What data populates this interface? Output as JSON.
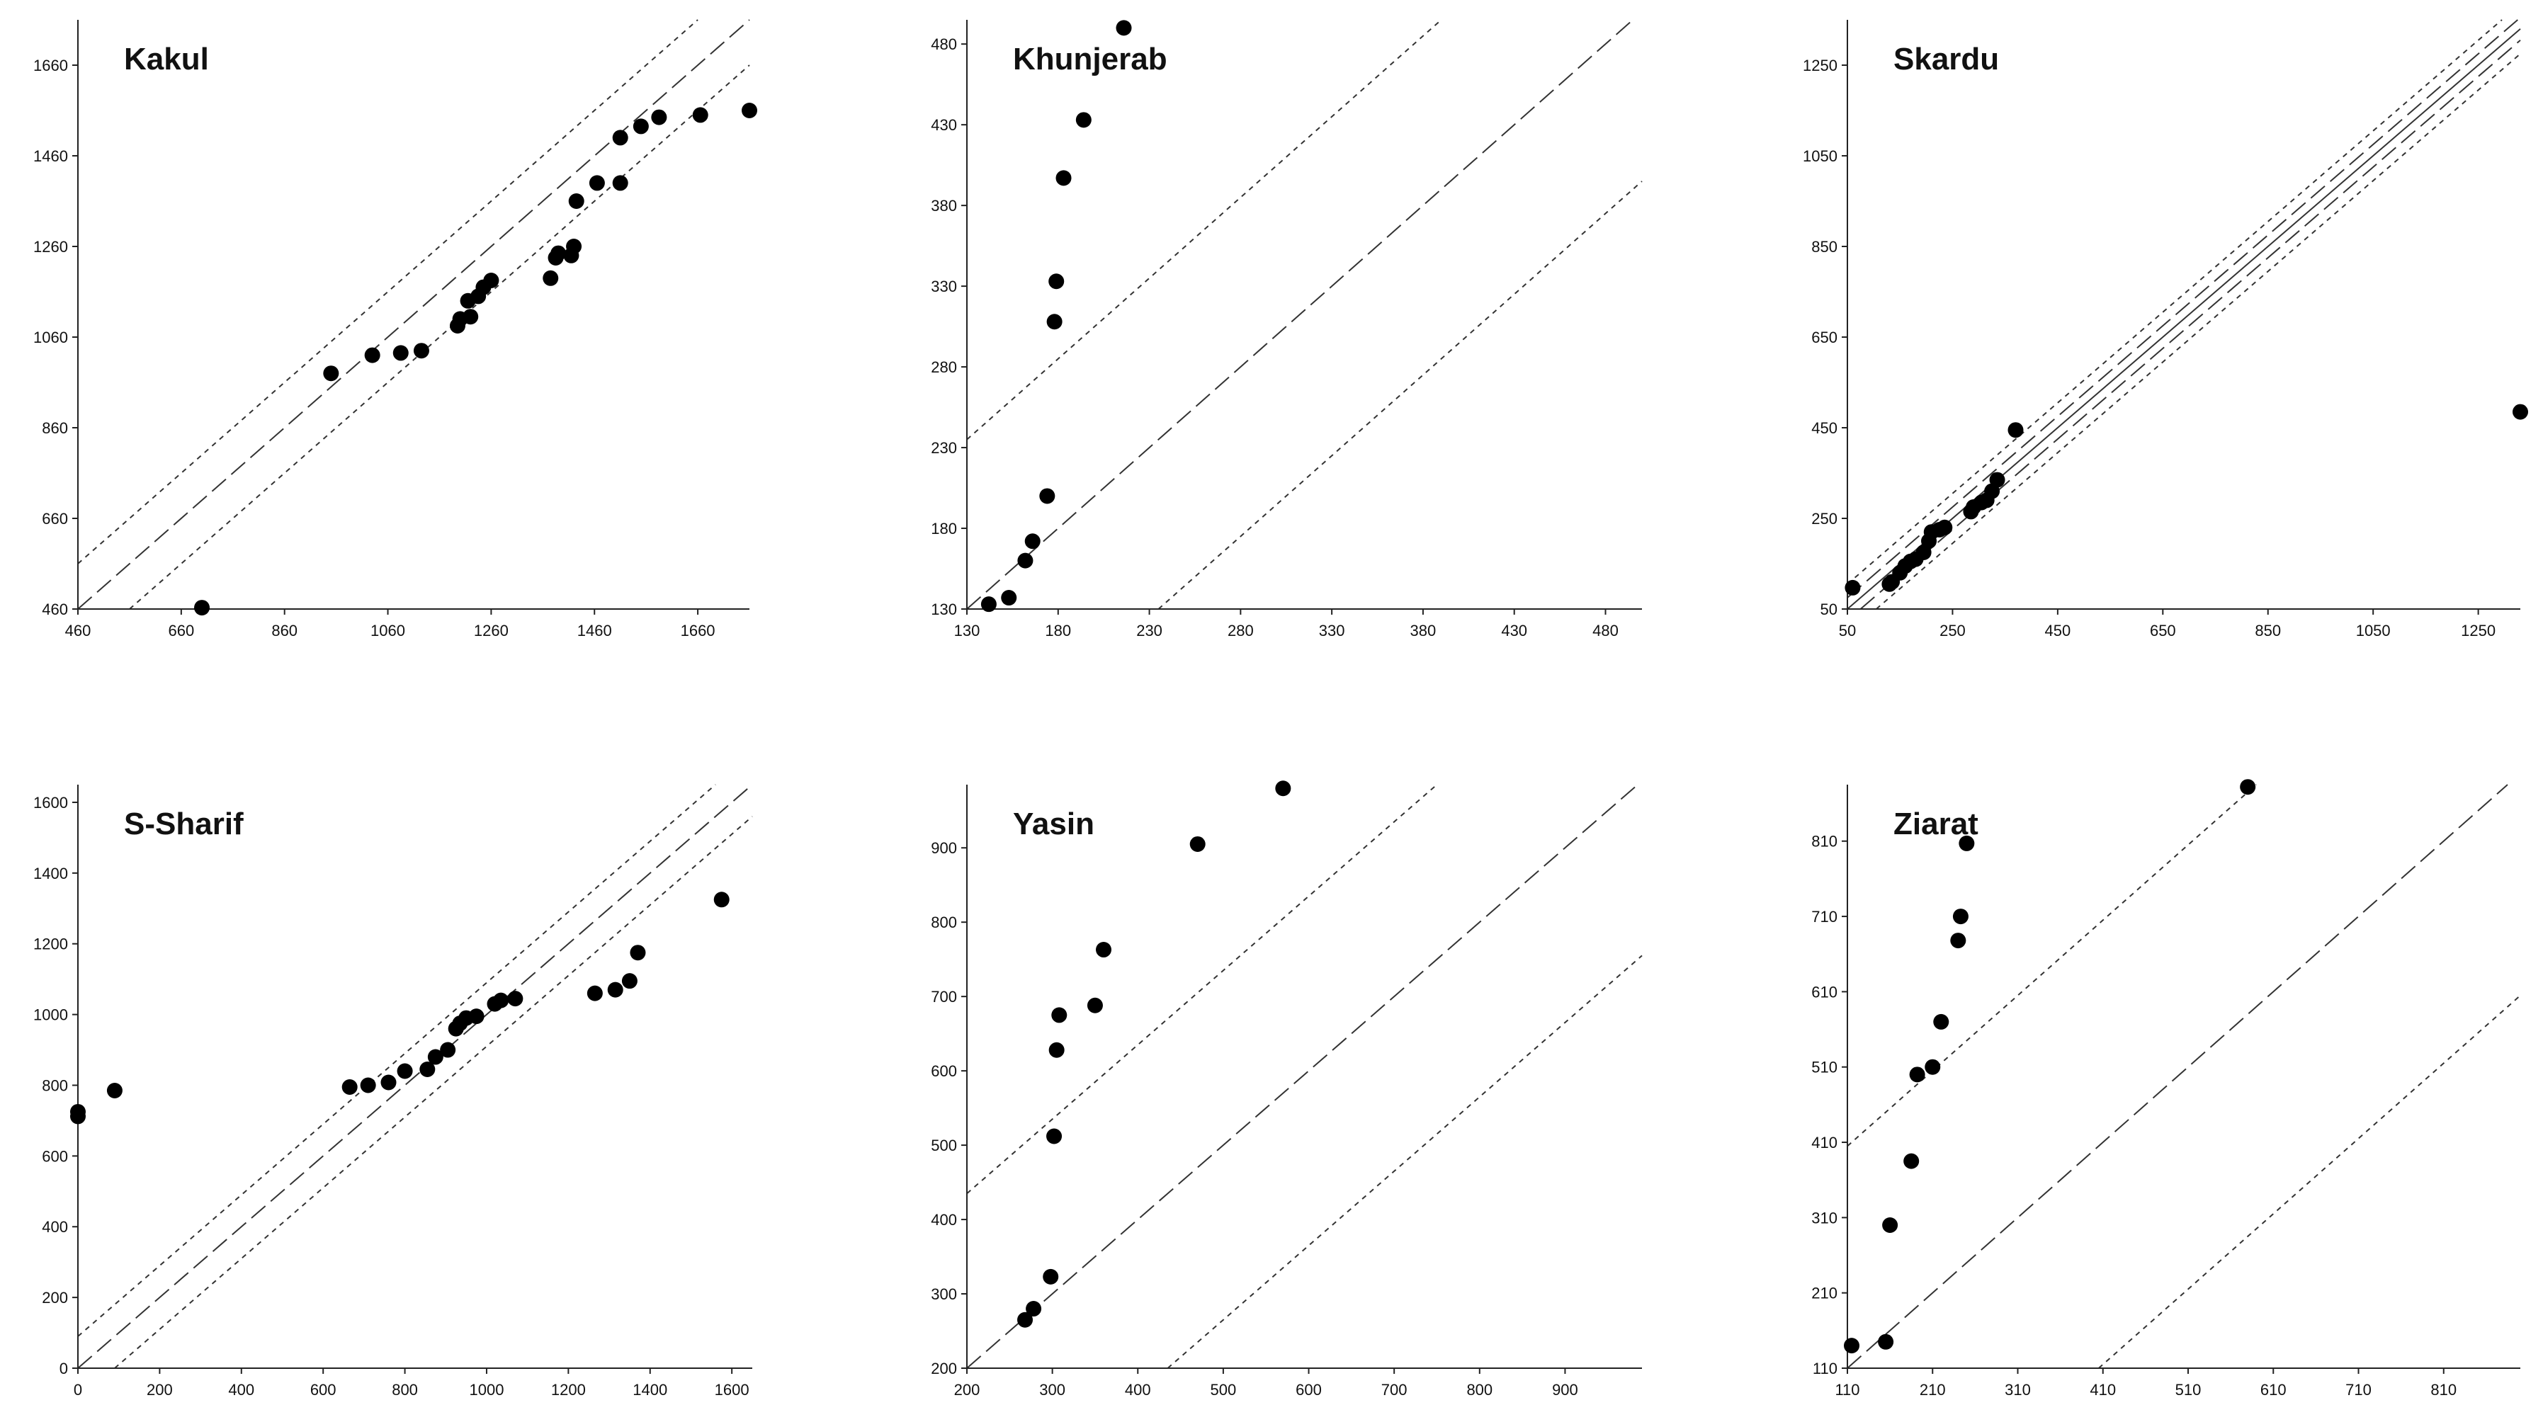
{
  "chart_data": [
    {
      "type": "scatter",
      "title": "Kakul",
      "xlabel": "",
      "ylabel": "",
      "xlim": [
        460,
        1760
      ],
      "ylim": [
        460,
        1760
      ],
      "xticks": [
        460,
        660,
        860,
        1060,
        1260,
        1460,
        1660
      ],
      "yticks": [
        460,
        660,
        860,
        1060,
        1260,
        1460,
        1660
      ],
      "reference_lines": [
        {
          "name": "1:1",
          "style": "long-dash",
          "offset": 0
        },
        {
          "name": "upper bound",
          "style": "dotted",
          "offset": 100
        },
        {
          "name": "lower bound",
          "style": "dotted",
          "offset": -100
        }
      ],
      "points": [
        [
          700,
          463
        ],
        [
          950,
          980
        ],
        [
          1030,
          1020
        ],
        [
          1085,
          1025
        ],
        [
          1125,
          1030
        ],
        [
          1195,
          1085
        ],
        [
          1200,
          1100
        ],
        [
          1220,
          1105
        ],
        [
          1215,
          1140
        ],
        [
          1235,
          1150
        ],
        [
          1245,
          1170
        ],
        [
          1260,
          1185
        ],
        [
          1375,
          1190
        ],
        [
          1385,
          1235
        ],
        [
          1390,
          1245
        ],
        [
          1415,
          1240
        ],
        [
          1420,
          1260
        ],
        [
          1425,
          1360
        ],
        [
          1465,
          1400
        ],
        [
          1510,
          1400
        ],
        [
          1510,
          1500
        ],
        [
          1550,
          1525
        ],
        [
          1585,
          1545
        ],
        [
          1665,
          1550
        ],
        [
          1760,
          1560
        ]
      ]
    },
    {
      "type": "scatter",
      "title": "Khunjerab",
      "xlabel": "",
      "ylabel": "",
      "xlim": [
        130,
        500
      ],
      "ylim": [
        130,
        495
      ],
      "xticks": [
        130,
        180,
        230,
        280,
        330,
        380,
        430,
        480
      ],
      "yticks": [
        130,
        180,
        230,
        280,
        330,
        380,
        430,
        480
      ],
      "reference_lines": [
        {
          "name": "1:1",
          "style": "long-dash",
          "offset": 0
        },
        {
          "name": "upper bound",
          "style": "dotted",
          "offset": 105
        },
        {
          "name": "lower bound",
          "style": "dotted",
          "offset": -105
        }
      ],
      "points": [
        [
          142,
          133
        ],
        [
          153,
          137
        ],
        [
          162,
          160
        ],
        [
          166,
          172
        ],
        [
          174,
          200
        ],
        [
          178,
          308
        ],
        [
          179,
          333
        ],
        [
          183,
          397
        ],
        [
          194,
          433
        ],
        [
          216,
          490
        ]
      ]
    },
    {
      "type": "scatter",
      "title": "Skardu",
      "xlabel": "",
      "ylabel": "",
      "xlim": [
        50,
        1330
      ],
      "ylim": [
        50,
        1350
      ],
      "xticks": [
        50,
        250,
        450,
        650,
        850,
        1050,
        1250
      ],
      "yticks": [
        50,
        250,
        450,
        650,
        850,
        1050,
        1250
      ],
      "reference_lines": [
        {
          "name": "1:1",
          "style": "solid",
          "offset": 0
        },
        {
          "name": "upper bound (inner)",
          "style": "long-dash",
          "offset": 25
        },
        {
          "name": "lower bound (inner)",
          "style": "long-dash",
          "offset": -25
        },
        {
          "name": "upper bound (outer)",
          "style": "dotted",
          "offset": 55
        },
        {
          "name": "lower bound (outer)",
          "style": "dotted",
          "offset": -55
        }
      ],
      "points": [
        [
          60,
          97
        ],
        [
          130,
          105
        ],
        [
          135,
          110
        ],
        [
          150,
          130
        ],
        [
          160,
          145
        ],
        [
          170,
          155
        ],
        [
          180,
          160
        ],
        [
          195,
          175
        ],
        [
          205,
          200
        ],
        [
          210,
          220
        ],
        [
          225,
          225
        ],
        [
          235,
          230
        ],
        [
          285,
          265
        ],
        [
          290,
          275
        ],
        [
          305,
          285
        ],
        [
          315,
          290
        ],
        [
          325,
          310
        ],
        [
          335,
          335
        ],
        [
          370,
          445
        ],
        [
          1330,
          485
        ]
      ]
    },
    {
      "type": "scatter",
      "title": "S-Sharif",
      "xlabel": "",
      "ylabel": "",
      "xlim": [
        0,
        1650
      ],
      "ylim": [
        0,
        1650
      ],
      "xticks": [
        0,
        200,
        400,
        600,
        800,
        1000,
        1200,
        1400,
        1600
      ],
      "yticks": [
        0,
        200,
        400,
        600,
        800,
        1000,
        1200,
        1400,
        1600
      ],
      "reference_lines": [
        {
          "name": "1:1",
          "style": "long-dash",
          "offset": 0
        },
        {
          "name": "upper bound",
          "style": "dotted",
          "offset": 90
        },
        {
          "name": "lower bound",
          "style": "dotted",
          "offset": -90
        }
      ],
      "points": [
        [
          0,
          712
        ],
        [
          0,
          725
        ],
        [
          90,
          785
        ],
        [
          665,
          795
        ],
        [
          710,
          800
        ],
        [
          760,
          808
        ],
        [
          800,
          840
        ],
        [
          855,
          845
        ],
        [
          875,
          880
        ],
        [
          905,
          900
        ],
        [
          925,
          960
        ],
        [
          935,
          975
        ],
        [
          950,
          990
        ],
        [
          975,
          995
        ],
        [
          1020,
          1030
        ],
        [
          1035,
          1040
        ],
        [
          1070,
          1045
        ],
        [
          1265,
          1060
        ],
        [
          1315,
          1070
        ],
        [
          1350,
          1095
        ],
        [
          1370,
          1175
        ],
        [
          1575,
          1325
        ]
      ]
    },
    {
      "type": "scatter",
      "title": "Yasin",
      "xlabel": "",
      "ylabel": "",
      "xlim": [
        200,
        990
      ],
      "ylim": [
        200,
        985
      ],
      "xticks": [
        200,
        300,
        400,
        500,
        600,
        700,
        800,
        900
      ],
      "yticks": [
        200,
        300,
        400,
        500,
        600,
        700,
        800,
        900
      ],
      "reference_lines": [
        {
          "name": "1:1",
          "style": "long-dash",
          "offset": 0
        },
        {
          "name": "upper bound",
          "style": "dotted",
          "offset": 235
        },
        {
          "name": "lower bound",
          "style": "dotted",
          "offset": -235
        }
      ],
      "points": [
        [
          268,
          265
        ],
        [
          278,
          280
        ],
        [
          298,
          323
        ],
        [
          302,
          512
        ],
        [
          305,
          628
        ],
        [
          308,
          675
        ],
        [
          350,
          688
        ],
        [
          360,
          763
        ],
        [
          470,
          905
        ],
        [
          570,
          980
        ]
      ]
    },
    {
      "type": "scatter",
      "title": "Ziarat",
      "xlabel": "",
      "ylabel": "",
      "xlim": [
        110,
        900
      ],
      "ylim": [
        110,
        885
      ],
      "xticks": [
        110,
        210,
        310,
        410,
        510,
        610,
        710,
        810
      ],
      "yticks": [
        110,
        210,
        310,
        410,
        510,
        610,
        710,
        810
      ],
      "reference_lines": [
        {
          "name": "1:1",
          "style": "long-dash",
          "offset": 0
        },
        {
          "name": "upper bound",
          "style": "dotted",
          "offset": 295
        },
        {
          "name": "lower bound",
          "style": "dotted",
          "offset": -295
        }
      ],
      "points": [
        [
          115,
          140
        ],
        [
          155,
          145
        ],
        [
          160,
          300
        ],
        [
          185,
          385
        ],
        [
          192,
          500
        ],
        [
          210,
          510
        ],
        [
          220,
          570
        ],
        [
          240,
          678
        ],
        [
          243,
          710
        ],
        [
          250,
          807
        ],
        [
          580,
          882
        ]
      ]
    }
  ]
}
